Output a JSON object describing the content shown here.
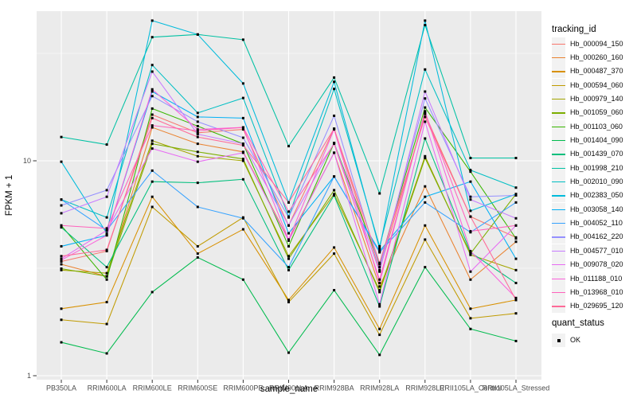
{
  "chart_data": {
    "type": "line",
    "title": "",
    "xlabel": "sample_name",
    "ylabel": "FPKM + 1",
    "y_scale": "log10",
    "y_tick_labels": [
      "1",
      "10"
    ],
    "y_tick_values": [
      1,
      10
    ],
    "y_minor_values": [
      3.1623,
      31.623
    ],
    "ylim": [
      0.96,
      49.7
    ],
    "panel_bg": "#EBEBEB",
    "grid_color": "#FFFFFF",
    "point_color": "#000000",
    "tick_label_color": "#4D4D4D",
    "categories": [
      "PB350LA",
      "RRIM600LA",
      "RRIM600LE",
      "RRIM600SE",
      "RRIM600PE",
      "RRIM901LA",
      "RRIM928BA",
      "RRIM928LA",
      "RRIM928LE",
      "RRII105LA_Control",
      "RRII105LA_Stressed"
    ],
    "series": [
      {
        "name": "Hb_000094_150",
        "color": "#F8766D",
        "values": [
          3.4,
          3.8,
          16.4,
          13.5,
          14.0,
          5.0,
          14.1,
          3.1,
          16.5,
          5.5,
          4.4
        ]
      },
      {
        "name": "Hb_000260_160",
        "color": "#EA8331",
        "values": [
          3.3,
          2.9,
          14.3,
          12.0,
          11.0,
          4.3,
          10.9,
          2.6,
          7.6,
          2.8,
          4.2
        ]
      },
      {
        "name": "Hb_000487_370",
        "color": "#D89000",
        "values": [
          2.05,
          2.2,
          6.8,
          3.7,
          4.8,
          2.25,
          3.95,
          1.65,
          5.0,
          2.05,
          2.25
        ]
      },
      {
        "name": "Hb_000594_060",
        "color": "#C09B00",
        "values": [
          1.82,
          1.74,
          6.1,
          4.0,
          5.45,
          2.2,
          3.7,
          1.55,
          4.3,
          1.85,
          1.95
        ]
      },
      {
        "name": "Hb_000979_140",
        "color": "#A3A500",
        "values": [
          3.1,
          3.0,
          12.4,
          10.5,
          10.0,
          3.6,
          7.0,
          2.5,
          10.5,
          3.65,
          3.1
        ]
      },
      {
        "name": "Hb_001059_060",
        "color": "#7CAE00",
        "values": [
          3.15,
          2.9,
          12.0,
          11.0,
          10.2,
          3.5,
          7.3,
          2.45,
          10.3,
          3.7,
          7.0
        ]
      },
      {
        "name": "Hb_001103_060",
        "color": "#39B600",
        "values": [
          5.0,
          2.8,
          17.5,
          14.5,
          12.0,
          4.0,
          12.1,
          3.3,
          17.7,
          8.9,
          4.35
        ]
      },
      {
        "name": "Hb_001404_090",
        "color": "#00BB4E",
        "values": [
          1.43,
          1.27,
          2.45,
          3.55,
          2.8,
          1.28,
          2.5,
          1.25,
          3.2,
          1.65,
          1.45
        ]
      },
      {
        "name": "Hb_001439_070",
        "color": "#00BF7D",
        "values": [
          4.9,
          3.2,
          8.0,
          7.9,
          8.2,
          3.1,
          6.9,
          2.1,
          12.7,
          3.75,
          2.7
        ]
      },
      {
        "name": "Hb_001998_210",
        "color": "#00C1A3",
        "values": [
          12.9,
          11.9,
          37.6,
          38.7,
          36.6,
          11.7,
          24.4,
          7.05,
          42.8,
          10.3,
          10.3
        ]
      },
      {
        "name": "Hb_002010_090",
        "color": "#00BFC4",
        "values": [
          6.6,
          5.45,
          27.9,
          16.7,
          19.6,
          5.5,
          21.6,
          4.0,
          26.6,
          9.05,
          7.5
        ]
      },
      {
        "name": "Hb_002383_050",
        "color": "#00BBDB",
        "values": [
          9.9,
          4.6,
          44.9,
          38.7,
          22.9,
          6.4,
          23.3,
          3.9,
          44.9,
          5.85,
          7.0
        ]
      },
      {
        "name": "Hb_003058_140",
        "color": "#00B0F6",
        "values": [
          4.0,
          4.5,
          21.0,
          16.0,
          15.8,
          4.6,
          8.45,
          3.8,
          6.8,
          8.0,
          3.5
        ]
      },
      {
        "name": "Hb_004052_110",
        "color": "#35A2FF",
        "values": [
          6.6,
          4.75,
          9.0,
          6.1,
          5.4,
          3.2,
          8.45,
          3.75,
          6.4,
          4.65,
          6.4
        ]
      },
      {
        "name": "Hb_004162_220",
        "color": "#9590FF",
        "values": [
          6.2,
          7.3,
          20.0,
          15.2,
          12.8,
          5.45,
          16.2,
          3.2,
          19.5,
          6.8,
          6.9
        ]
      },
      {
        "name": "Hb_004577_010",
        "color": "#C77CFF",
        "values": [
          5.7,
          6.8,
          26.0,
          13.3,
          12.0,
          5.0,
          12.1,
          3.05,
          21.0,
          6.6,
          5.4
        ]
      },
      {
        "name": "Hb_009078_020",
        "color": "#E76BF3",
        "values": [
          3.5,
          4.75,
          11.4,
          9.9,
          10.9,
          4.25,
          10.9,
          2.15,
          15.2,
          3.05,
          5.0
        ]
      },
      {
        "name": "Hb_011188_010",
        "color": "#FA62DB",
        "values": [
          3.45,
          4.5,
          21.5,
          14.0,
          14.3,
          4.3,
          14.0,
          2.7,
          17.0,
          3.8,
          2.3
        ]
      },
      {
        "name": "Hb_013968_010",
        "color": "#FF62BC",
        "values": [
          5.0,
          4.85,
          14.6,
          13.8,
          14.3,
          5.8,
          12.0,
          2.8,
          16.8,
          4.7,
          5.0
        ]
      },
      {
        "name": "Hb_029695_120",
        "color": "#FF6A98",
        "values": [
          3.6,
          3.85,
          15.8,
          12.9,
          11.8,
          6.4,
          14.1,
          3.35,
          16.0,
          5.5,
          2.25
        ]
      }
    ],
    "legend": {
      "color_title": "tracking_id",
      "shape_title": "quant_status",
      "shape_items": [
        {
          "label": "OK"
        }
      ]
    }
  }
}
